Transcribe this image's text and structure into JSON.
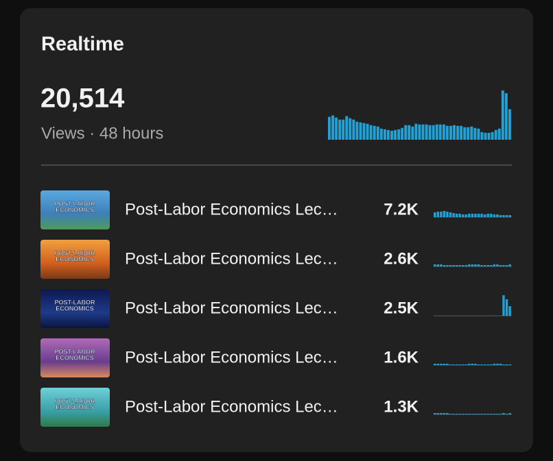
{
  "header": {
    "title": "Realtime",
    "total": "20,514",
    "subtitle": "Views · 48 hours"
  },
  "chart": {
    "color": "#1fa3d6",
    "values": [
      33,
      35,
      32,
      29,
      29,
      34,
      31,
      29,
      26,
      25,
      24,
      23,
      21,
      20,
      19,
      16,
      15,
      14,
      13,
      14,
      15,
      17,
      21,
      21,
      19,
      23,
      22,
      22,
      22,
      21,
      21,
      22,
      22,
      22,
      20,
      20,
      21,
      20,
      20,
      18,
      18,
      19,
      17,
      16,
      11,
      10,
      10,
      11,
      14,
      16,
      71,
      67,
      44
    ]
  },
  "videos": [
    {
      "thumbnail_text": [
        "POST-LABOR",
        "ECONOMICS"
      ],
      "title": "Post-Labor Economics Lec…",
      "views": "7.2K",
      "spark": [
        7,
        8,
        8,
        9,
        8,
        7,
        6,
        5,
        5,
        4,
        4,
        5,
        5,
        5,
        5,
        5,
        4,
        5,
        5,
        4,
        4,
        3,
        3,
        3,
        3
      ]
    },
    {
      "thumbnail_text": [
        "POST-LABOR",
        "ECONOMICS"
      ],
      "title": "Post-Labor Economics Lec…",
      "views": "2.6K",
      "spark": [
        3,
        3,
        3,
        2,
        2,
        2,
        2,
        2,
        2,
        2,
        2,
        3,
        3,
        3,
        3,
        2,
        2,
        2,
        2,
        3,
        3,
        2,
        2,
        2,
        3
      ]
    },
    {
      "thumbnail_text": [
        "POST-LABOR",
        "ECONOMICS"
      ],
      "title": "Post-Labor Economics Lec…",
      "views": "2.5K",
      "spark": [
        0,
        0,
        0,
        0,
        0,
        0,
        0,
        0,
        0,
        0,
        0,
        0,
        0,
        0,
        0,
        0,
        0,
        0,
        0,
        0,
        0,
        0,
        30,
        24,
        14
      ]
    },
    {
      "thumbnail_text": [
        "POST-LABOR",
        "ECONOMICS"
      ],
      "title": "Post-Labor Economics Lec…",
      "views": "1.6K",
      "spark": [
        2,
        2,
        2,
        2,
        2,
        1,
        1,
        1,
        1,
        1,
        1,
        2,
        2,
        2,
        1,
        1,
        1,
        1,
        1,
        2,
        2,
        2,
        1,
        1,
        1
      ]
    },
    {
      "thumbnail_text": [
        "POST-LABOR",
        "ECONOMICS"
      ],
      "title": "Post-Labor Economics Lec…",
      "views": "1.3K",
      "spark": [
        2,
        2,
        2,
        2,
        2,
        1,
        1,
        1,
        1,
        1,
        1,
        1,
        1,
        1,
        1,
        1,
        1,
        1,
        1,
        1,
        1,
        1,
        2,
        1,
        2
      ]
    }
  ]
}
